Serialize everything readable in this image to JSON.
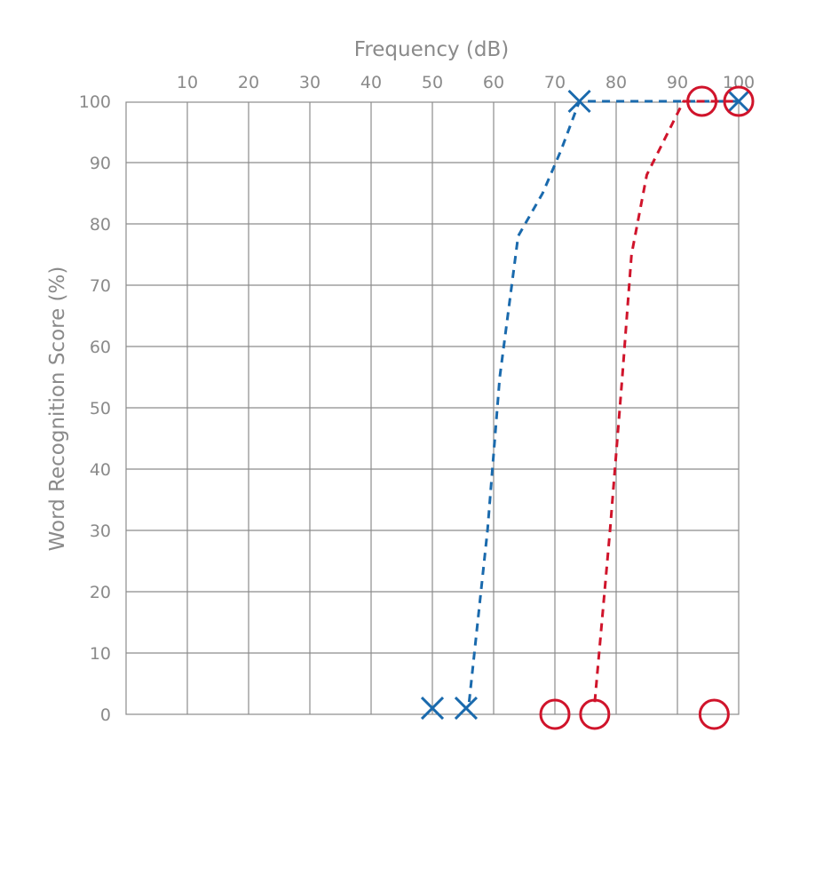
{
  "chart_data": {
    "type": "line",
    "title": "",
    "xlabel": "Frequency (dB)",
    "ylabel": "Word Recognition Score (%)",
    "xlim": [
      0,
      100
    ],
    "ylim": [
      0,
      100
    ],
    "x_ticks": [
      "10",
      "20",
      "30",
      "40",
      "50",
      "60",
      "70",
      "80",
      "90",
      "100"
    ],
    "y_ticks": [
      "0",
      "10",
      "20",
      "30",
      "40",
      "50",
      "60",
      "70",
      "80",
      "90",
      "100"
    ],
    "x_axis_position": "top",
    "grid": true,
    "legend": "none",
    "series": [
      {
        "marker": "x",
        "color": "#1a6aad",
        "line_style": "dashed",
        "line": [
          [
            56,
            2
          ],
          [
            59,
            30
          ],
          [
            61,
            55
          ],
          [
            64,
            78
          ],
          [
            68,
            85
          ],
          [
            71,
            92
          ],
          [
            74,
            100
          ],
          [
            100,
            100
          ]
        ],
        "points": [
          [
            50,
            1
          ],
          [
            55.5,
            1
          ],
          [
            74,
            100
          ],
          [
            100,
            100
          ]
        ]
      },
      {
        "marker": "circle",
        "color": "#d0142b",
        "line_style": "dashed",
        "line": [
          [
            76.5,
            2
          ],
          [
            79,
            30
          ],
          [
            81,
            55
          ],
          [
            82.5,
            75
          ],
          [
            85,
            88
          ],
          [
            91,
            100
          ],
          [
            100,
            100
          ]
        ],
        "points": [
          [
            70,
            0
          ],
          [
            76.5,
            0
          ],
          [
            94,
            100
          ],
          [
            96,
            0
          ],
          [
            100,
            100
          ]
        ]
      }
    ]
  }
}
